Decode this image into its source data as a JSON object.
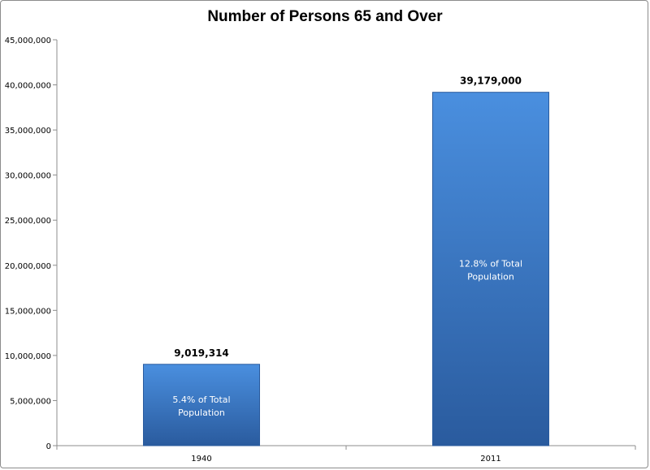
{
  "chart_data": {
    "type": "bar",
    "title": "Number of Persons 65 and Over",
    "xlabel": "",
    "ylabel": "",
    "categories": [
      "1940",
      "2011"
    ],
    "values": [
      9019314,
      39179000
    ],
    "data_labels": [
      "9,019,314",
      "39,179,000"
    ],
    "bar_annotations": [
      [
        "5.4% of Total",
        "Population"
      ],
      [
        "12.8% of Total",
        "Population"
      ]
    ],
    "ylim": [
      0,
      45000000
    ],
    "yticks": [
      0,
      5000000,
      10000000,
      15000000,
      20000000,
      25000000,
      30000000,
      35000000,
      40000000,
      45000000
    ],
    "ytick_labels": [
      "0",
      "5,000,000",
      "10,000,000",
      "15,000,000",
      "20,000,000",
      "25,000,000",
      "30,000,000",
      "35,000,000",
      "40,000,000",
      "45,000,000"
    ],
    "grid": false,
    "legend": "none",
    "colors": {
      "bar_top": "#4a8fdf",
      "bar_bottom": "#2a5b9e",
      "axis": "#8c8c8c"
    }
  }
}
